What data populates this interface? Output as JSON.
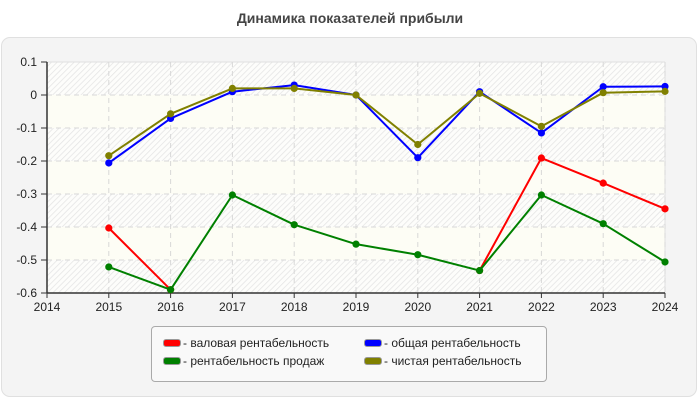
{
  "title": "Динамика показателей прибыли",
  "chart_data": {
    "type": "line",
    "title": "Динамика показателей прибыли",
    "xlabel": "",
    "ylabel": "",
    "x": [
      2015,
      2016,
      2017,
      2018,
      2019,
      2020,
      2021,
      2022,
      2023,
      2024
    ],
    "xlim": [
      2014,
      2024
    ],
    "ylim": [
      -0.6,
      0.1
    ],
    "x_ticks": [
      "2014",
      "2015",
      "2016",
      "2017",
      "2018",
      "2019",
      "2020",
      "2021",
      "2022",
      "2023",
      "2024"
    ],
    "y_ticks": [
      "0.1",
      "0",
      "-0.1",
      "-0.2",
      "-0.3",
      "-0.4",
      "-0.5",
      "-0.6"
    ],
    "grid": true,
    "legend_position": "bottom",
    "series": [
      {
        "name": "валовая рентабельность",
        "color": "#ff0000",
        "values": [
          -0.403,
          -0.59,
          null,
          null,
          null,
          null,
          -0.532,
          -0.191,
          -0.267,
          -0.345
        ]
      },
      {
        "name": "общая рентабельность",
        "color": "#0000ff",
        "values": [
          -0.206,
          -0.071,
          0.01,
          0.03,
          0.0,
          -0.19,
          0.01,
          -0.115,
          0.025,
          0.026
        ]
      },
      {
        "name": "рентабельность продаж",
        "color": "#008000",
        "values": [
          -0.521,
          -0.59,
          -0.303,
          -0.393,
          -0.452,
          -0.484,
          -0.532,
          -0.303,
          -0.39,
          -0.506
        ]
      },
      {
        "name": "чистая рентабельность",
        "color": "#808000",
        "values": [
          -0.184,
          -0.057,
          0.02,
          0.02,
          0.0,
          -0.15,
          0.005,
          -0.095,
          0.007,
          0.011
        ]
      }
    ]
  },
  "legend": {
    "items": [
      {
        "label": "- валовая рентабельность",
        "color": "#ff0000"
      },
      {
        "label": "- общая рентабельность",
        "color": "#0000ff"
      },
      {
        "label": "- рентабельность продаж",
        "color": "#008000"
      },
      {
        "label": "- чистая рентабельность",
        "color": "#808000"
      }
    ]
  }
}
